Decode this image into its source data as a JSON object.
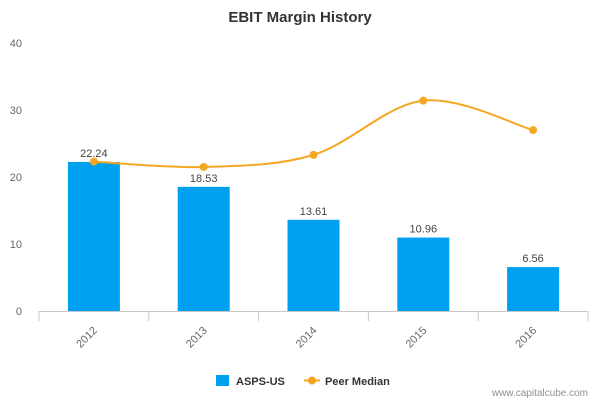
{
  "chart_data": {
    "type": "bar",
    "title": "EBIT Margin History",
    "categories": [
      "2012",
      "2013",
      "2014",
      "2015",
      "2016"
    ],
    "ylim": [
      0,
      40
    ],
    "yticks": [
      0,
      10,
      20,
      30,
      40
    ],
    "grid": false,
    "legend_position": "bottom",
    "series": [
      {
        "name": "ASPS-US",
        "type": "bar",
        "color": "#00a0f0",
        "values": [
          22.24,
          18.53,
          13.61,
          10.96,
          6.56
        ],
        "data_labels": [
          "22.24",
          "18.53",
          "13.61",
          "10.96",
          "6.56"
        ]
      },
      {
        "name": "Peer Median",
        "type": "line",
        "color": "#f5a623",
        "values": [
          22.3,
          21.5,
          23.3,
          31.4,
          27.0
        ]
      }
    ]
  },
  "credit": "www.capitalcube.com"
}
